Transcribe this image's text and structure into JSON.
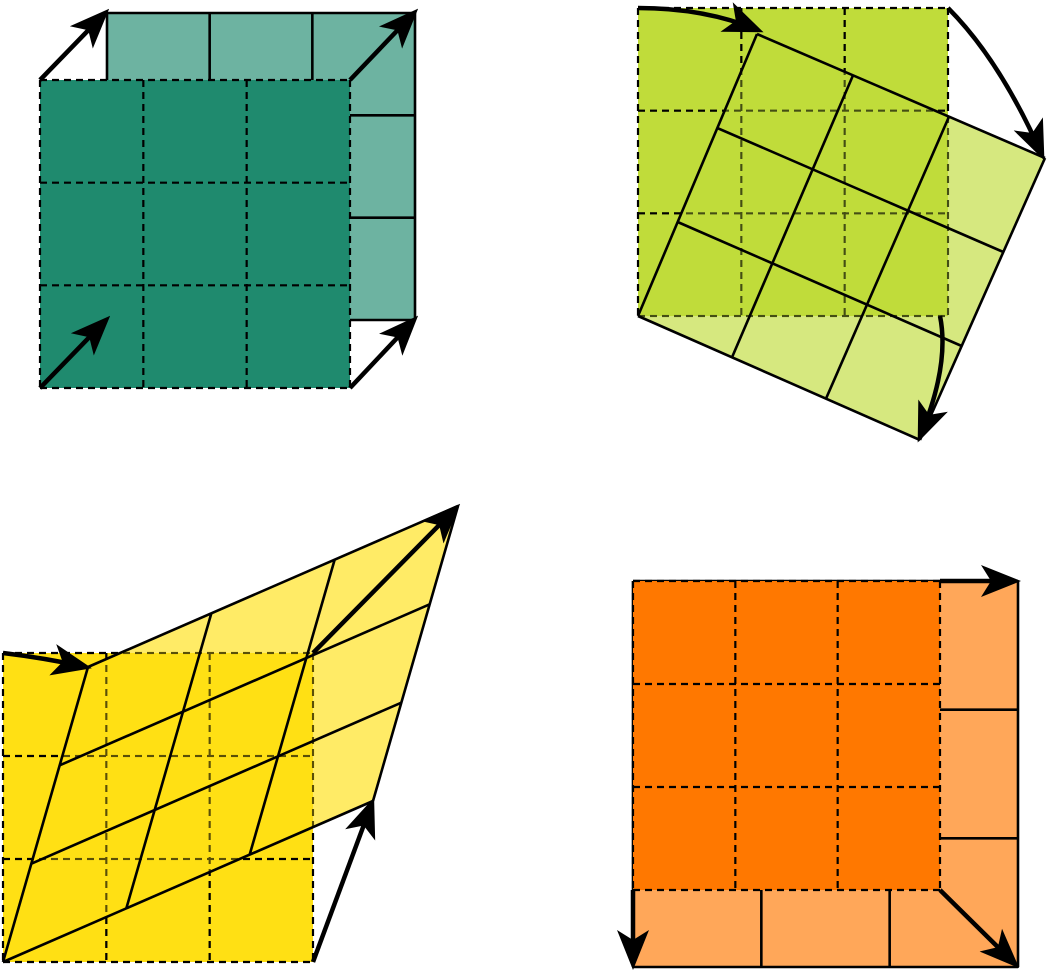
{
  "colors": {
    "translation": "#1f8a6e",
    "rotation": "#c0dc3a",
    "shear": "#ffe014",
    "scaling": "#ff7800",
    "stroke": "#000000"
  },
  "panels": [
    {
      "id": "translation",
      "kind": "translation-transform",
      "grid": [
        3,
        3
      ],
      "original_fill": "#1f8a6e",
      "transformed_fill": "#1f8a6e",
      "transformed_opacity": 0.65,
      "arrow_style": "straight",
      "arrow_icons": [
        "arrow-icon",
        "arrow-icon",
        "arrow-icon",
        "arrow-icon"
      ]
    },
    {
      "id": "rotation",
      "kind": "rotation-transform",
      "grid": [
        3,
        3
      ],
      "original_fill": "#c0dc3a",
      "transformed_fill": "#c0dc3a",
      "transformed_opacity": 0.65,
      "arrow_style": "curved",
      "arrow_icons": [
        "curved-arrow-icon",
        "curved-arrow-icon",
        "curved-arrow-icon"
      ]
    },
    {
      "id": "shear",
      "kind": "shear-transform",
      "grid": [
        3,
        3
      ],
      "original_fill": "#ffe014",
      "transformed_fill": "#ffe014",
      "transformed_opacity": 0.65,
      "arrow_style": "straight",
      "arrow_icons": [
        "arrow-icon",
        "arrow-icon",
        "arrow-icon"
      ]
    },
    {
      "id": "scaling",
      "kind": "scaling-transform",
      "grid": [
        3,
        3
      ],
      "original_fill": "#ff7800",
      "transformed_fill": "#ff7800",
      "transformed_opacity": 0.65,
      "arrow_style": "straight",
      "arrow_icons": [
        "arrow-icon",
        "arrow-icon",
        "arrow-icon"
      ]
    }
  ]
}
